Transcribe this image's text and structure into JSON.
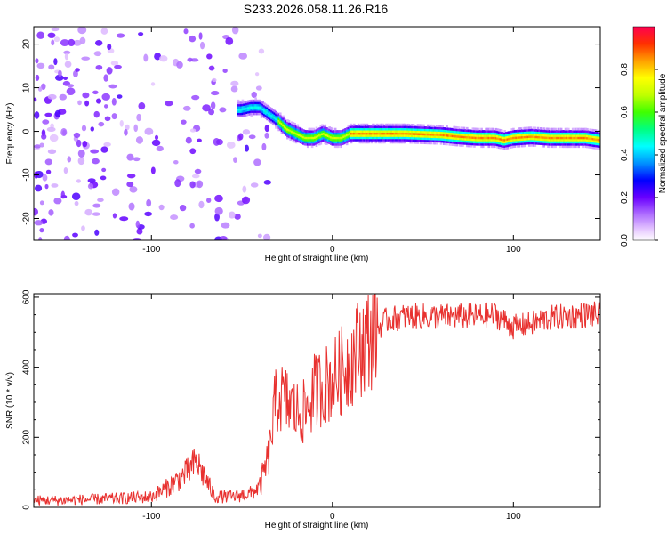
{
  "title": "S233.2026.058.11.26.R16",
  "colors": {
    "snr_line": "#e8312f",
    "axis": "#000000"
  },
  "chart_data": [
    {
      "type": "heatmap",
      "xlabel": "Height of straight line (km)",
      "ylabel": "Frequency (Hz)",
      "xlim": [
        -165,
        148
      ],
      "ylim": [
        -25,
        24
      ],
      "x_ticks": [
        -100,
        0,
        100
      ],
      "y_ticks": [
        -20,
        -10,
        0,
        10,
        20
      ],
      "colorbar": {
        "label": "Normalized spectral amplitude",
        "range": [
          0,
          1
        ],
        "ticks": [
          0.0,
          0.2,
          0.4,
          0.6,
          0.8
        ],
        "colormap": "rainbow"
      },
      "ridge": {
        "x": [
          -50,
          -45,
          -40,
          -35,
          -30,
          -25,
          -20,
          -15,
          -10,
          -5,
          0,
          5,
          10,
          20,
          40,
          60,
          70,
          80,
          90,
          95,
          100,
          110,
          120,
          130,
          140,
          148
        ],
        "y": [
          5,
          5.5,
          5.5,
          4,
          2.5,
          0.5,
          -0.5,
          -1.5,
          -1.5,
          -0.5,
          -1.5,
          -1.5,
          -0.5,
          -0.5,
          -0.5,
          -0.8,
          -1.2,
          -1.5,
          -1.5,
          -2.0,
          -1.5,
          -1.2,
          -1.5,
          -1.5,
          -1.5,
          -2.0
        ]
      }
    },
    {
      "type": "line",
      "xlabel": "Height of straight line (km)",
      "ylabel": "SNR (10 * v/v)",
      "xlim": [
        -165,
        148
      ],
      "ylim": [
        0,
        610
      ],
      "x_ticks": [
        -100,
        0,
        100
      ],
      "y_ticks": [
        0,
        200,
        400,
        600
      ],
      "series": [
        {
          "x": [
            -165,
            -150,
            -120,
            -100,
            -90,
            -80,
            -75,
            -70,
            -65,
            -55,
            -45,
            -40,
            -35,
            -32,
            -30,
            -25,
            -20,
            -15,
            -10,
            -5,
            0,
            5,
            10,
            15,
            20,
            25,
            30,
            40,
            60,
            80,
            90,
            100,
            110,
            120,
            130,
            140,
            148
          ],
          "values": [
            20,
            20,
            25,
            30,
            60,
            100,
            130,
            80,
            30,
            30,
            40,
            60,
            150,
            280,
            320,
            300,
            270,
            270,
            330,
            350,
            360,
            390,
            420,
            460,
            480,
            510,
            535,
            545,
            545,
            545,
            550,
            515,
            525,
            540,
            545,
            550,
            550
          ]
        }
      ]
    }
  ]
}
